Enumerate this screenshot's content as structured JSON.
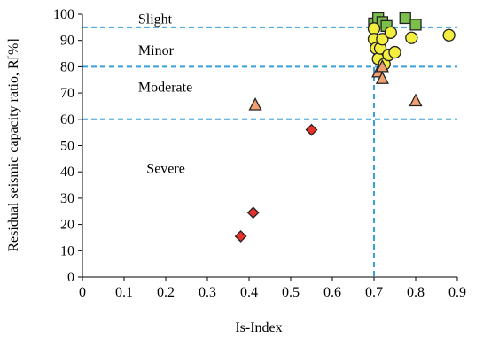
{
  "chart_data": {
    "type": "scatter",
    "xlabel": "Is-Index",
    "ylabel": "Residual seismic capacity ratio,  R[%]",
    "xlim": [
      0,
      0.9
    ],
    "ylim": [
      0,
      100
    ],
    "x_ticks": [
      0,
      0.1,
      0.2,
      0.3,
      0.4,
      0.5,
      0.6,
      0.7,
      0.8,
      0.9
    ],
    "x_tick_labels": [
      "0",
      "0.1",
      "0.2",
      "0.3",
      "0.4",
      "0.5",
      "0.6",
      "0.7",
      "0.8",
      "0.9"
    ],
    "y_ticks": [
      0,
      10,
      20,
      30,
      40,
      50,
      60,
      70,
      80,
      90,
      100
    ],
    "y_tick_labels": [
      "0",
      "10",
      "20",
      "30",
      "40",
      "50",
      "60",
      "70",
      "80",
      "90",
      "100"
    ],
    "grid": false,
    "reference_lines": {
      "horizontal": [
        95,
        80,
        60
      ],
      "vertical": [
        0.7
      ],
      "color": "#3aa0d8"
    },
    "zones": [
      {
        "label": "Slight",
        "x": 0.07,
        "y": 98.5
      },
      {
        "label": "Minor",
        "x": 0.07,
        "y": 86.5
      },
      {
        "label": "Moderate",
        "x": 0.07,
        "y": 72.5
      },
      {
        "label": "Severe",
        "x": 0.09,
        "y": 41.5
      }
    ],
    "series": [
      {
        "marker": "square",
        "color": "#7cc04b",
        "points": [
          {
            "x": 0.7,
            "y": 96.5
          },
          {
            "x": 0.71,
            "y": 98.5
          },
          {
            "x": 0.72,
            "y": 97
          },
          {
            "x": 0.73,
            "y": 95.5
          },
          {
            "x": 0.775,
            "y": 98.5
          },
          {
            "x": 0.8,
            "y": 96
          }
        ]
      },
      {
        "marker": "circle",
        "color": "#f4ef3e",
        "points": [
          {
            "x": 0.7,
            "y": 94.5
          },
          {
            "x": 0.7,
            "y": 90.5
          },
          {
            "x": 0.705,
            "y": 87
          },
          {
            "x": 0.71,
            "y": 83
          },
          {
            "x": 0.715,
            "y": 87
          },
          {
            "x": 0.72,
            "y": 90.5
          },
          {
            "x": 0.725,
            "y": 81
          },
          {
            "x": 0.735,
            "y": 84.5
          },
          {
            "x": 0.74,
            "y": 93
          },
          {
            "x": 0.75,
            "y": 85.5
          },
          {
            "x": 0.79,
            "y": 91
          },
          {
            "x": 0.88,
            "y": 92
          }
        ]
      },
      {
        "marker": "triangle",
        "color": "#f0a070",
        "points": [
          {
            "x": 0.415,
            "y": 65.5
          },
          {
            "x": 0.71,
            "y": 78
          },
          {
            "x": 0.72,
            "y": 75.5
          },
          {
            "x": 0.72,
            "y": 80
          },
          {
            "x": 0.8,
            "y": 67
          }
        ]
      },
      {
        "marker": "diamond",
        "color": "#e8302a",
        "points": [
          {
            "x": 0.38,
            "y": 15.5
          },
          {
            "x": 0.41,
            "y": 24.5
          },
          {
            "x": 0.55,
            "y": 56
          }
        ]
      }
    ]
  }
}
